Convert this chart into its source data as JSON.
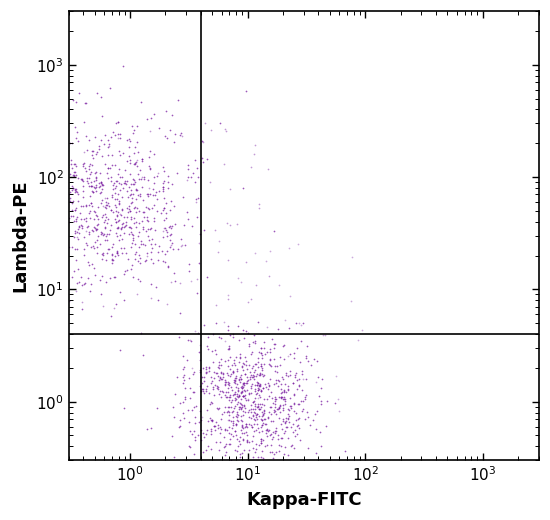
{
  "xlabel": "Kappa-FITC",
  "ylabel": "Lambda-PE",
  "xlim": [
    0.3,
    3000
  ],
  "ylim": [
    0.3,
    3000
  ],
  "dot_color": "#7B1FA2",
  "dot_alpha": 0.75,
  "dot_size": 1.5,
  "quadrant_line_x": 4.0,
  "quadrant_line_y": 4.0,
  "n_points_cluster1": 750,
  "n_points_cluster2": 850,
  "n_points_scatter1": 60,
  "n_points_scatter2": 40,
  "background_color": "#ffffff",
  "xlabel_fontsize": 13,
  "ylabel_fontsize": 13,
  "tick_fontsize": 11
}
